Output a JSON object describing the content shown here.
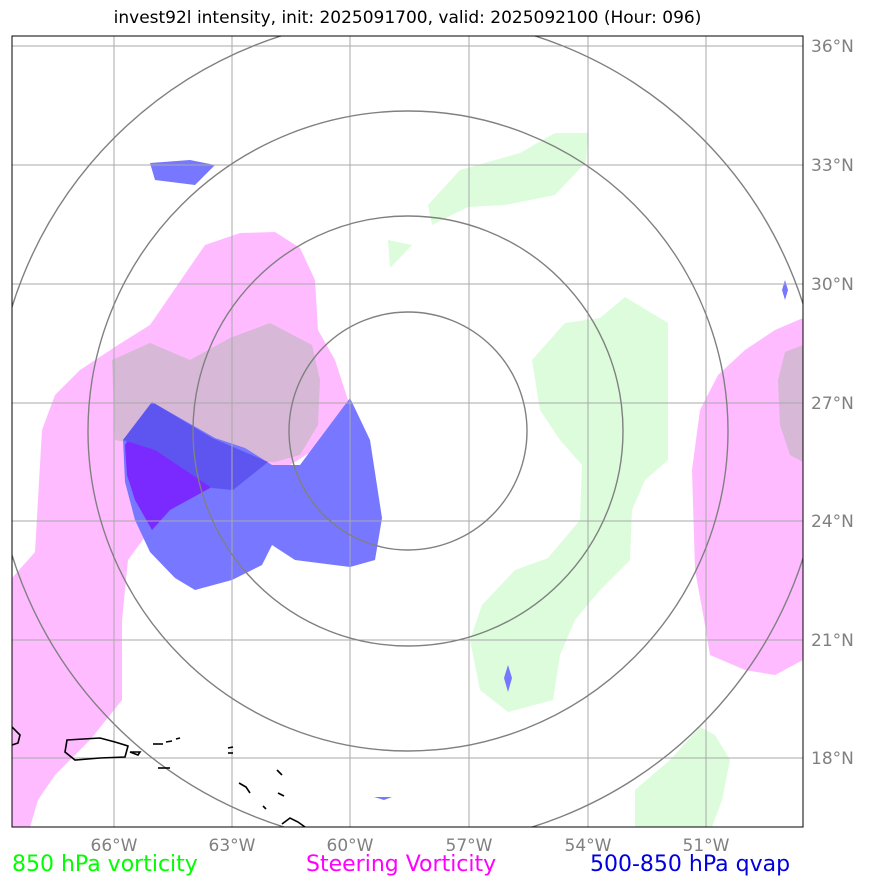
{
  "title": "invest92l intensity, init: 2025091700, valid: 2025092100 (Hour: 096)",
  "axes": {
    "lon_labels": [
      "66°W",
      "63°W",
      "60°W",
      "57°W",
      "54°W",
      "51°W"
    ],
    "lat_labels": [
      "36°N",
      "33°N",
      "30°N",
      "27°N",
      "24°N",
      "21°N",
      "18°N"
    ]
  },
  "legend": {
    "green_label": "850 hPa vorticity",
    "magenta_label": "Steering Vorticity",
    "blue_label": "500-850 hPa qvap"
  },
  "colors": {
    "green": "#00ff00",
    "magenta": "#ff00ff",
    "blue": "#0000dd",
    "green_fill": "#dcfcdc",
    "magenta_fill": "#ffbbff",
    "blue_fill": "#7777ff",
    "grid": "#aaaaaa",
    "ring": "#808080"
  }
}
